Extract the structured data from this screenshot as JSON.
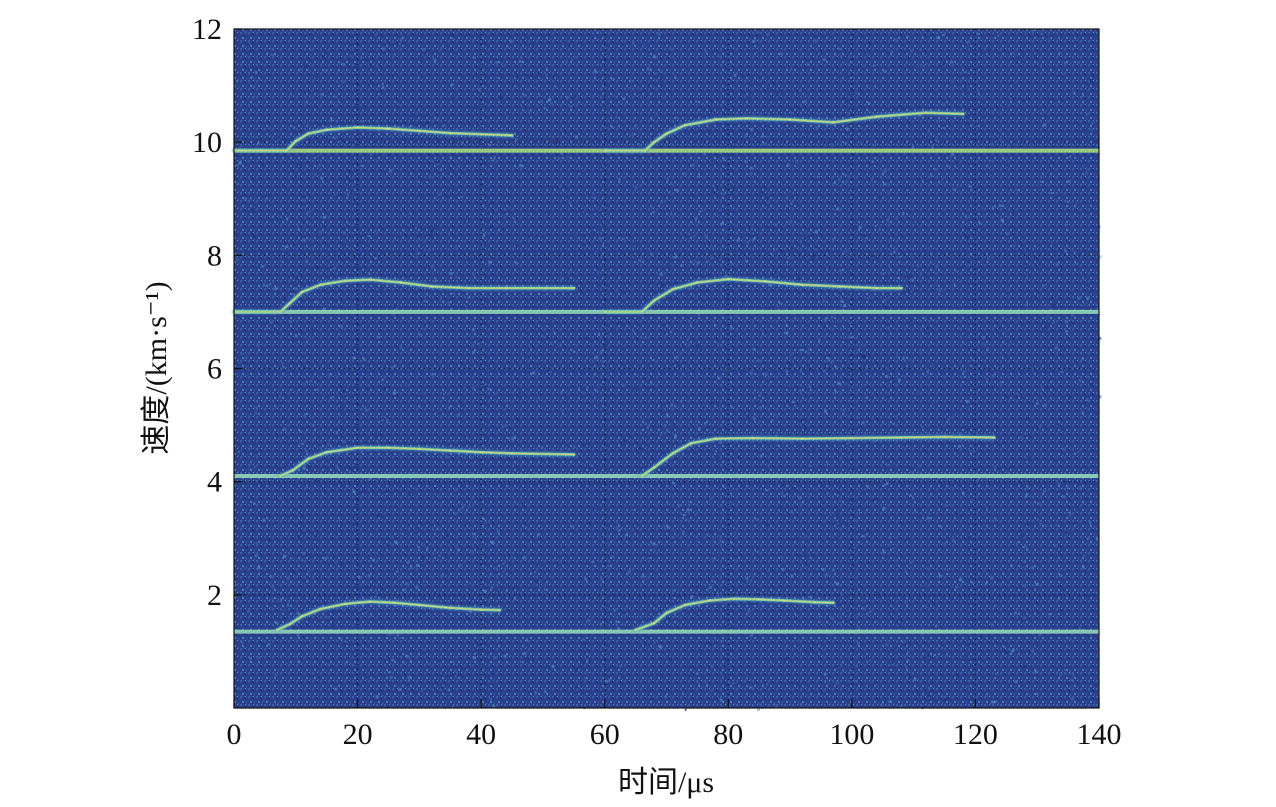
{
  "chart_data": {
    "type": "heatmap",
    "title": "",
    "xlabel": "时间/μs",
    "ylabel": "速度/(km·s⁻¹)",
    "xlim": [
      0,
      140
    ],
    "ylim": [
      0,
      12
    ],
    "x_ticks": [
      0,
      20,
      40,
      60,
      80,
      100,
      120,
      140
    ],
    "y_ticks": [
      2,
      4,
      6,
      8,
      10,
      12
    ],
    "x_tick_labels": [
      "0",
      "20",
      "40",
      "60",
      "80",
      "100",
      "120",
      "140"
    ],
    "y_tick_labels": [
      "2",
      "4",
      "6",
      "8",
      "10",
      "12"
    ],
    "grid": true,
    "grid_style": "dotted",
    "colormap": {
      "background": "#2b3f8f",
      "noise": [
        "#23337a",
        "#2f4b9a",
        "#3a62a8",
        "#4b86b4"
      ],
      "trace_low": "#4aa8c8",
      "trace_mid": "#7cc6a6",
      "trace_high": "#d8de7a"
    },
    "baselines": [
      {
        "velocity": 9.85,
        "x_start": 0,
        "x_end": 140,
        "color": "#9fd27e"
      },
      {
        "velocity": 7.0,
        "x_start": 0,
        "x_end": 140,
        "color": "#8fd0b4"
      },
      {
        "velocity": 4.1,
        "x_start": 0,
        "x_end": 140,
        "color": "#8fd0b4"
      },
      {
        "velocity": 1.35,
        "x_start": 0,
        "x_end": 140,
        "color": "#8fd0b4"
      }
    ],
    "series": [
      {
        "name": "",
        "points": [
          [
            0,
            9.85
          ],
          [
            8.5,
            9.85
          ],
          [
            10,
            10.02
          ],
          [
            12,
            10.15
          ],
          [
            15,
            10.22
          ],
          [
            20,
            10.26
          ],
          [
            25,
            10.24
          ],
          [
            30,
            10.2
          ],
          [
            35,
            10.16
          ],
          [
            40,
            10.14
          ],
          [
            45,
            10.12
          ]
        ]
      },
      {
        "name": "",
        "points": [
          [
            60,
            9.85
          ],
          [
            66.5,
            9.85
          ],
          [
            68,
            10.0
          ],
          [
            70,
            10.15
          ],
          [
            73,
            10.3
          ],
          [
            78,
            10.4
          ],
          [
            83,
            10.42
          ],
          [
            90,
            10.4
          ],
          [
            97,
            10.35
          ],
          [
            104,
            10.45
          ],
          [
            112,
            10.52
          ],
          [
            118,
            10.5
          ]
        ]
      },
      {
        "name": "",
        "points": [
          [
            0,
            7.0
          ],
          [
            7.5,
            7.0
          ],
          [
            9,
            7.15
          ],
          [
            11,
            7.35
          ],
          [
            14,
            7.48
          ],
          [
            18,
            7.55
          ],
          [
            22,
            7.57
          ],
          [
            27,
            7.52
          ],
          [
            32,
            7.45
          ],
          [
            38,
            7.42
          ],
          [
            44,
            7.42
          ],
          [
            55,
            7.42
          ]
        ]
      },
      {
        "name": "",
        "points": [
          [
            60,
            7.0
          ],
          [
            66,
            7.0
          ],
          [
            68,
            7.2
          ],
          [
            71,
            7.4
          ],
          [
            75,
            7.52
          ],
          [
            80,
            7.58
          ],
          [
            86,
            7.54
          ],
          [
            92,
            7.48
          ],
          [
            98,
            7.45
          ],
          [
            104,
            7.42
          ],
          [
            108,
            7.42
          ]
        ]
      },
      {
        "name": "",
        "points": [
          [
            7.5,
            4.1
          ],
          [
            9.5,
            4.2
          ],
          [
            12,
            4.4
          ],
          [
            15,
            4.52
          ],
          [
            20,
            4.6
          ],
          [
            25,
            4.6
          ],
          [
            30,
            4.58
          ],
          [
            35,
            4.55
          ],
          [
            40,
            4.52
          ],
          [
            45,
            4.5
          ],
          [
            55,
            4.48
          ]
        ]
      },
      {
        "name": "",
        "points": [
          [
            66,
            4.1
          ],
          [
            68,
            4.25
          ],
          [
            71,
            4.5
          ],
          [
            74,
            4.68
          ],
          [
            78,
            4.76
          ],
          [
            84,
            4.77
          ],
          [
            92,
            4.76
          ],
          [
            100,
            4.77
          ],
          [
            108,
            4.78
          ],
          [
            115,
            4.79
          ],
          [
            123,
            4.78
          ]
        ]
      },
      {
        "name": "",
        "points": [
          [
            7,
            1.38
          ],
          [
            9,
            1.48
          ],
          [
            11,
            1.62
          ],
          [
            14,
            1.75
          ],
          [
            18,
            1.84
          ],
          [
            22,
            1.88
          ],
          [
            26,
            1.86
          ],
          [
            30,
            1.82
          ],
          [
            35,
            1.77
          ],
          [
            40,
            1.74
          ],
          [
            43,
            1.73
          ]
        ]
      },
      {
        "name": "",
        "points": [
          [
            65,
            1.38
          ],
          [
            68,
            1.5
          ],
          [
            70,
            1.68
          ],
          [
            73,
            1.82
          ],
          [
            77,
            1.9
          ],
          [
            81,
            1.93
          ],
          [
            85,
            1.92
          ],
          [
            89,
            1.9
          ],
          [
            94,
            1.87
          ],
          [
            97,
            1.86
          ]
        ]
      }
    ]
  }
}
